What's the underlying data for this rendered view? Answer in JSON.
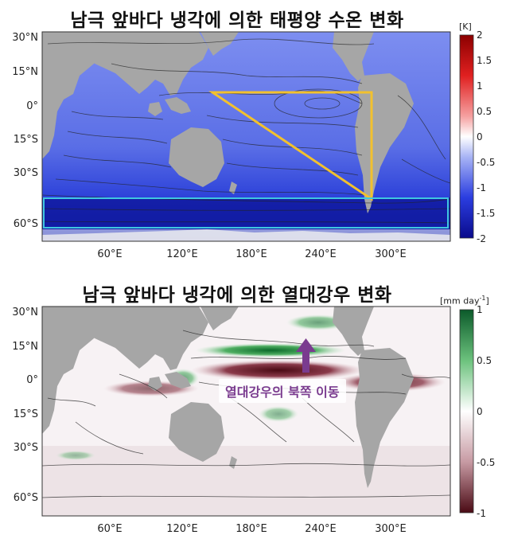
{
  "panel1": {
    "title": "남극 앞바다 냉각에 의한 태평양 수온 변화",
    "unit": "[K]",
    "colorbar_ticks": [
      "2",
      "1.5",
      "1",
      "0.5",
      "0",
      "-0.5",
      "-1",
      "-1.5",
      "-2"
    ],
    "lat_labels": [
      "30°N",
      "15°N",
      "0°",
      "15°S",
      "30°S",
      "60°S"
    ],
    "lon_labels": [
      "60°E",
      "120°E",
      "180°E",
      "240°E",
      "300°E"
    ],
    "colors": {
      "ocean": "#5a6ee6",
      "deep": "#1a24b8",
      "land": "#a6a6a6",
      "triangle": "#f2c12e",
      "box": "#3fc6e0"
    }
  },
  "panel2": {
    "title": "남극 앞바다 냉각에 의한 열대강우 변화",
    "unit_prefix": "[mm day",
    "unit_sup": "-1",
    "unit_suffix": "]",
    "colorbar_ticks": [
      "1",
      "0.5",
      "0",
      "-0.5",
      "-1"
    ],
    "lat_labels": [
      "30°N",
      "15°N",
      "0°",
      "15°S",
      "30°S",
      "60°S"
    ],
    "lon_labels": [
      "60°E",
      "120°E",
      "180°E",
      "240°E",
      "300°E"
    ],
    "annotation": "열대강우의 북쪽 이동",
    "colors": {
      "green": "#1f8a3c",
      "brown": "#5a0e1a",
      "arrow": "#7a3b8f",
      "land": "#a6a6a6"
    }
  }
}
